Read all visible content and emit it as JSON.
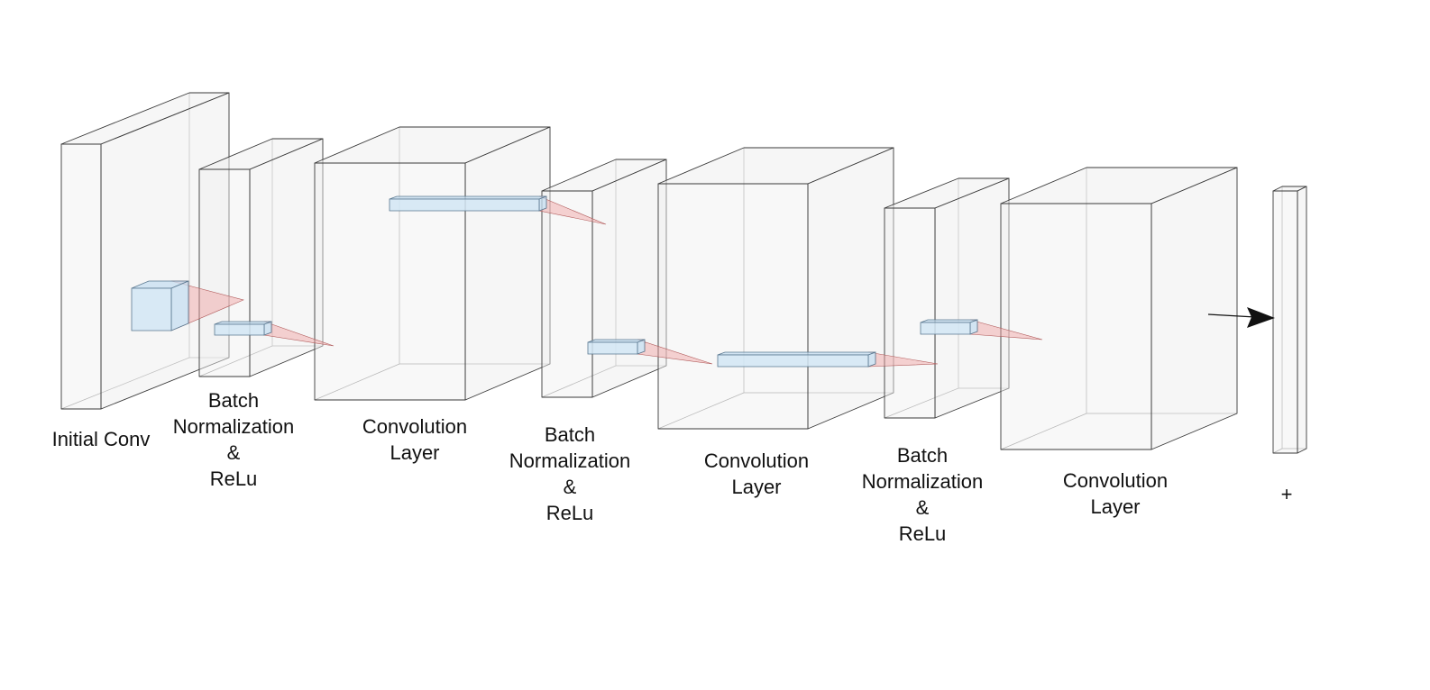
{
  "diagram": {
    "layers": [
      {
        "id": "initial-conv",
        "label_lines": [
          "Initial Conv"
        ]
      },
      {
        "id": "batchnorm-relu-1",
        "label_lines": [
          "Batch",
          "Normalization",
          "&",
          "ReLu"
        ]
      },
      {
        "id": "conv-layer-1",
        "label_lines": [
          "Convolution",
          "Layer"
        ]
      },
      {
        "id": "batchnorm-relu-2",
        "label_lines": [
          "Batch",
          "Normalization",
          "&",
          "ReLu"
        ]
      },
      {
        "id": "conv-layer-2",
        "label_lines": [
          "Convolution",
          "Layer"
        ]
      },
      {
        "id": "batchnorm-relu-3",
        "label_lines": [
          "Batch",
          "Normalization",
          "&",
          "ReLu"
        ]
      },
      {
        "id": "conv-layer-3",
        "label_lines": [
          "Convolution",
          "Layer"
        ]
      },
      {
        "id": "add-output",
        "label_lines": [
          "+"
        ]
      }
    ],
    "colors": {
      "layer_face": "#eeeeee",
      "layer_edge": "#3a3a3a",
      "kernel": "#c6def0",
      "receptive_field": "#f0a0a0",
      "arrow": "#111111"
    }
  }
}
